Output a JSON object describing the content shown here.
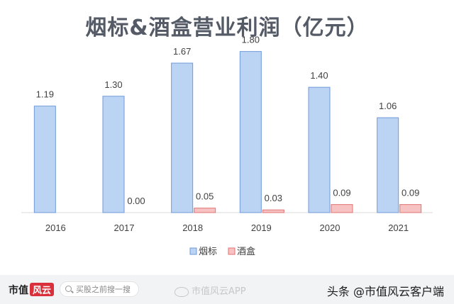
{
  "chart_data": {
    "type": "bar",
    "title": "烟标&酒盒营业利润（亿元）",
    "unit": "亿元",
    "categories": [
      "2016",
      "2017",
      "2018",
      "2019",
      "2020",
      "2021"
    ],
    "series": [
      {
        "name": "烟标",
        "values": [
          1.19,
          null,
          1.67,
          1.8,
          1.4,
          1.06
        ],
        "labels": [
          "1.19",
          "1.30",
          "1.67",
          "1.80",
          "1.40",
          "1.06"
        ],
        "bar_values": [
          1.19,
          1.3,
          1.67,
          1.8,
          1.4,
          1.06
        ],
        "color": "#9ec1ef"
      },
      {
        "name": "酒盒",
        "values": [
          null,
          0.0,
          0.05,
          0.03,
          0.09,
          0.09
        ],
        "labels": [
          "",
          "0.00",
          "0.05",
          "0.03",
          "0.09",
          "0.09"
        ],
        "color": "#f3a9a9"
      }
    ],
    "ylim": [
      0,
      1.9
    ],
    "legend_position": "bottom-center",
    "grid": false
  },
  "footer": {
    "brand_text": "市值",
    "brand_mark": "风云",
    "search_placeholder": "买股之前搜一搜",
    "weibo_text": "市值风云APP",
    "source_text": "头条 @市值风云客户端"
  },
  "colors": {
    "bar_blue_fill": "#bcd4f4",
    "bar_blue_stroke": "#6f9ad8",
    "bar_red_fill": "#f7c2c2",
    "bar_red_stroke": "#e07272",
    "title_color": "#555b66",
    "footer_bg": "#f2f3f5"
  }
}
